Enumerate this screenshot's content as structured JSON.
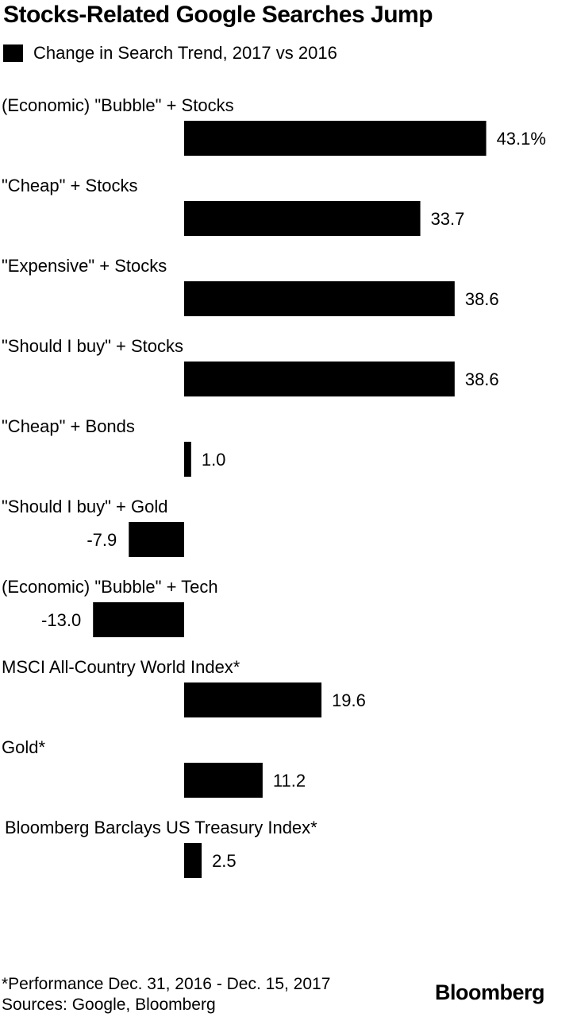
{
  "chart_data": {
    "type": "bar",
    "orientation": "horizontal",
    "title": "Stocks-Related Google Searches Jump",
    "legend": [
      {
        "name": "Change in Search Trend, 2017 vs 2016",
        "color": "#000000"
      }
    ],
    "categories": [
      "(Economic) \"Bubble\" + Stocks",
      "\"Cheap\" + Stocks",
      "\"Expensive\" + Stocks",
      "\"Should I buy\" + Stocks",
      "\"Cheap\" + Bonds",
      "\"Should I buy\" + Gold",
      "(Economic) \"Bubble\" + Tech",
      "MSCI All-Country World Index*",
      "Gold*",
      "Bloomberg Barclays US Treasury Index*"
    ],
    "values": [
      43.1,
      33.7,
      38.6,
      38.6,
      1.0,
      -7.9,
      -13.0,
      19.6,
      11.2,
      2.5
    ],
    "value_labels": [
      "43.1%",
      "33.7",
      "38.6",
      "38.6",
      "1.0",
      "-7.9",
      "-13.0",
      "19.6",
      "11.2",
      "2.5"
    ],
    "bar_color": "#000000",
    "grid": false,
    "legend_position": "top-left"
  },
  "footnotes": {
    "performance": "*Performance Dec. 31, 2016 - Dec. 15, 2017",
    "sources": "Sources: Google, Bloomberg"
  },
  "brand": "Bloomberg"
}
